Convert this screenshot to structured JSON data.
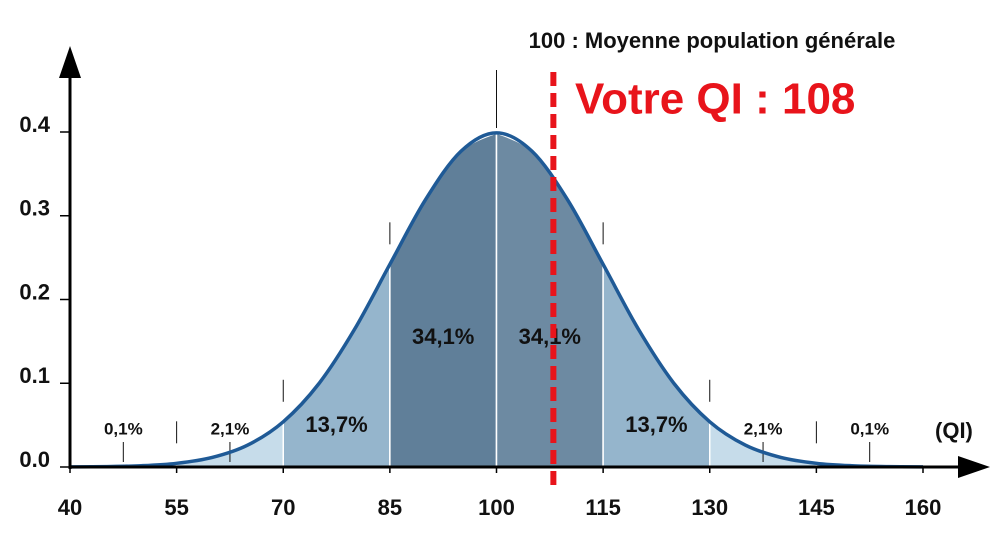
{
  "chart_data": {
    "type": "normal-area",
    "mean_annotation": {
      "value": 100,
      "label": "100 : Moyenne population générale"
    },
    "marker": {
      "value": 108,
      "label": "Votre QI : 108",
      "color": "#e8141b"
    },
    "x_label": "(QI)",
    "x": [
      40,
      45,
      50,
      55,
      60,
      65,
      70,
      75,
      80,
      85,
      90,
      95,
      100,
      105,
      110,
      115,
      120,
      125,
      130,
      135,
      140,
      145,
      150,
      155,
      160
    ],
    "values": [
      0.0001,
      0.0005,
      0.0015,
      0.0044,
      0.0114,
      0.0262,
      0.054,
      0.0994,
      0.164,
      0.242,
      0.319,
      0.377,
      0.399,
      0.377,
      0.319,
      0.242,
      0.164,
      0.0994,
      0.054,
      0.0262,
      0.0114,
      0.0044,
      0.0015,
      0.0005,
      0.0001
    ],
    "color": "#1f5a96",
    "bands": {
      "edges": [
        40,
        55,
        70,
        85,
        100,
        115,
        130,
        145,
        160
      ],
      "values": [
        0.1,
        2.1,
        13.7,
        34.1,
        34.1,
        13.7,
        2.1,
        0.1
      ],
      "value_labels": [
        "0,1%",
        "2,1%",
        "13,7%",
        "34,1%",
        "34,1%",
        "13,7%",
        "2,1%",
        "0,1%"
      ],
      "colors": [
        "#c6dcea",
        "#c6dcea",
        "#95b5cc",
        "#607f99",
        "#6d8aa2",
        "#95b5cc",
        "#c6dcea",
        "#c6dcea"
      ]
    },
    "xlim": [
      40,
      168
    ],
    "ylim": [
      0,
      0.48
    ],
    "xticks": [
      40,
      55,
      70,
      85,
      100,
      115,
      130,
      145,
      160
    ],
    "yticks": [
      {
        "value": 0,
        "label": "0.0"
      },
      0.1,
      0.2,
      0.3,
      0.4
    ]
  }
}
